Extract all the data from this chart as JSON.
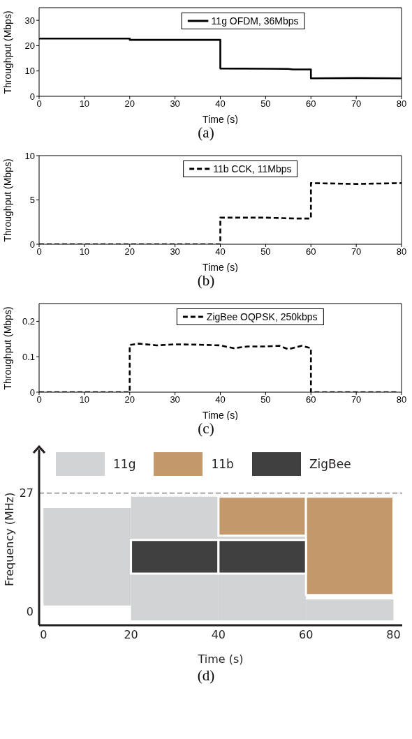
{
  "chart_data": [
    {
      "type": "line",
      "x": [
        0,
        10,
        20,
        20,
        30,
        40,
        40,
        50,
        55,
        56,
        60,
        60,
        70,
        80
      ],
      "series": [
        {
          "name": "11g OFDM, 36Mbps",
          "color": "#000000",
          "values": [
            22.8,
            22.8,
            22.8,
            22.3,
            22.3,
            22.3,
            11,
            10.9,
            10.8,
            10.6,
            10.6,
            7.1,
            7.2,
            7.1
          ]
        }
      ],
      "xlim": [
        0,
        80
      ],
      "xticks": [
        0,
        10,
        20,
        30,
        40,
        50,
        60,
        70,
        80
      ],
      "ylim": [
        0,
        35
      ],
      "yticks": [
        0,
        10,
        20,
        30
      ],
      "xlabel": "Time (s)",
      "ylabel": "Throughput (Mbps)",
      "legend": "top",
      "line_style": "solid",
      "annotations": [
        "(a)"
      ]
    },
    {
      "type": "line",
      "x": [
        0,
        20,
        40,
        40,
        50,
        57,
        60,
        60,
        70,
        80
      ],
      "series": [
        {
          "name": "11b CCK, 11Mbps",
          "color": "#000000",
          "values": [
            0,
            0,
            0,
            3,
            3,
            2.9,
            2.9,
            6.9,
            6.8,
            6.9
          ]
        }
      ],
      "xlim": [
        0,
        80
      ],
      "xticks": [
        0,
        10,
        20,
        30,
        40,
        50,
        60,
        70,
        80
      ],
      "ylim": [
        0,
        10
      ],
      "yticks": [
        0,
        5,
        10
      ],
      "xlabel": "Time (s)",
      "ylabel": "Throughput  (Mbps)",
      "legend": "top",
      "line_style": "dashed",
      "annotations": [
        "(b)"
      ]
    },
    {
      "type": "line",
      "x": [
        0,
        10,
        20,
        20,
        22,
        26,
        30,
        35,
        40,
        43,
        46,
        50,
        53,
        55,
        58,
        60,
        60,
        70,
        79
      ],
      "series": [
        {
          "name": "ZigBee OQPSK, 250kbps",
          "color": "#000000",
          "values": [
            0,
            0,
            0,
            0.133,
            0.137,
            0.132,
            0.135,
            0.134,
            0.132,
            0.124,
            0.129,
            0.129,
            0.131,
            0.121,
            0.131,
            0.124,
            0,
            0,
            0
          ]
        }
      ],
      "xlim": [
        0,
        80
      ],
      "xticks": [
        0,
        10,
        20,
        30,
        40,
        50,
        60,
        70,
        80
      ],
      "ylim": [
        0,
        0.25
      ],
      "yticks": [
        0,
        0.1,
        0.2
      ],
      "xlabel": "Time (s)",
      "ylabel": "Throughput (Mbps)",
      "legend": "top",
      "line_style": "dashed",
      "annotations": [
        "(c)"
      ]
    },
    {
      "type": "bar",
      "x": [
        10,
        30,
        50,
        70
      ],
      "series": [
        {
          "name": "11g",
          "color": "#d1d3d4",
          "base": [
            1.3,
            -2.1,
            -2.1,
            -2.1
          ],
          "values": [
            22.3,
            28.3,
            19.4,
            4.8
          ]
        },
        {
          "name": "11b",
          "color": "#c3996b",
          "base": [
            null,
            null,
            17.3,
            3.7
          ],
          "values": [
            null,
            null,
            8.9,
            22.5
          ]
        },
        {
          "name": "ZigBee",
          "color": "#404040",
          "base": [
            null,
            8.6,
            8.6,
            null
          ],
          "values": [
            null,
            7.7,
            7.7,
            null
          ]
        }
      ],
      "xlim": [
        -1,
        82
      ],
      "xticks": [
        0,
        20,
        40,
        60,
        80
      ],
      "ylim": [
        -3.2,
        37
      ],
      "yticks": [
        0,
        27
      ],
      "xlabel": "Time  (s)",
      "ylabel": "Frequency (MHz)",
      "legend": "top",
      "ref_lines": [
        {
          "axis": "y",
          "value": 27,
          "line_style": "dashed",
          "color": "#404040"
        }
      ],
      "annotations": [
        "(d)"
      ]
    }
  ]
}
